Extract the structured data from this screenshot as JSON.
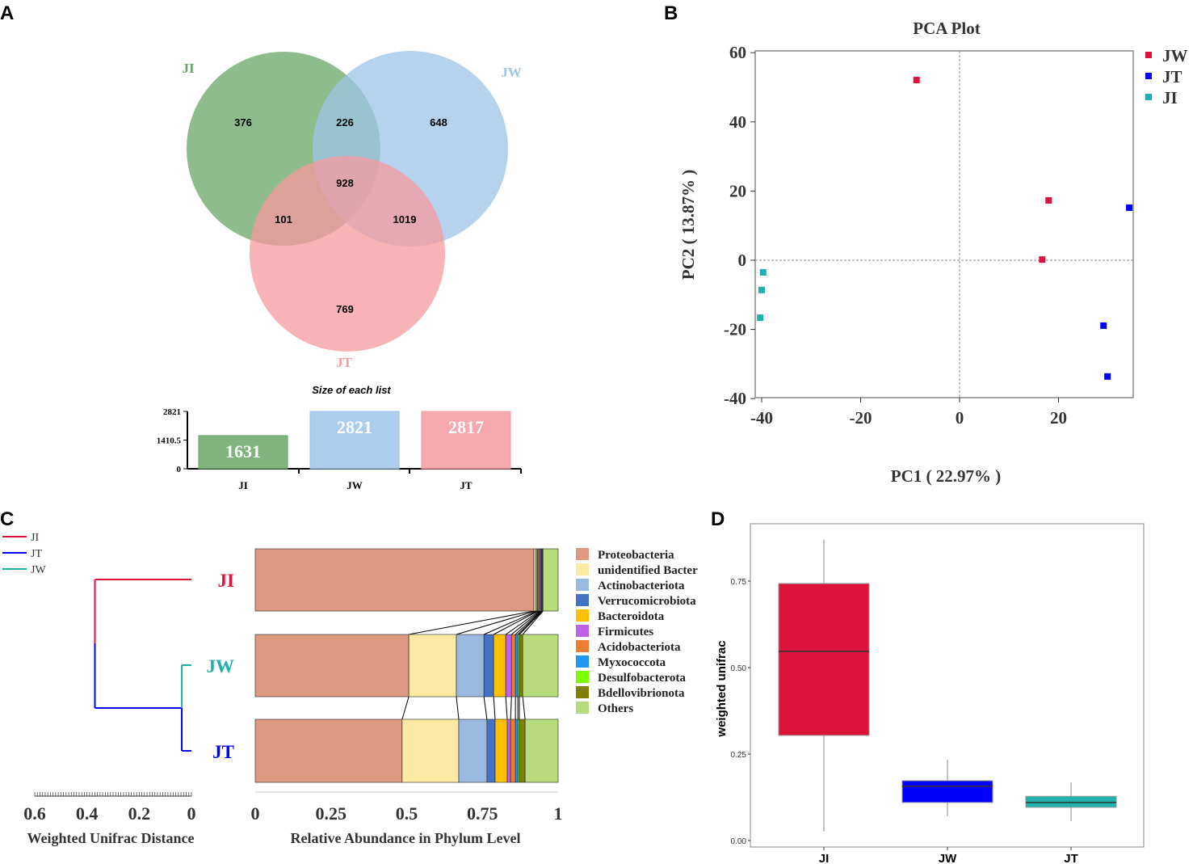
{
  "panels": {
    "a": "A",
    "b": "B",
    "c": "C",
    "d": "D"
  },
  "chart_data": [
    {
      "type": "venn",
      "sets": [
        {
          "name": "JI",
          "color": "#6aa667"
        },
        {
          "name": "JW",
          "color": "#9ec4e8"
        },
        {
          "name": "JT",
          "color": "#f59a9f"
        }
      ],
      "regions": {
        "JI_only": 376,
        "JI_JW": 226,
        "JW_only": 648,
        "all": 928,
        "JI_JT": 101,
        "JW_JT": 1019,
        "JT_only": 769
      },
      "sizes_title": "Size of each list",
      "sizes": {
        "categories": [
          "JI",
          "JW",
          "JT"
        ],
        "values": [
          1631,
          2821,
          2817
        ],
        "ticks": [
          "0",
          "1410.5",
          "2821"
        ],
        "ylim": [
          0,
          2821
        ]
      }
    },
    {
      "type": "scatter",
      "title": "PCA Plot",
      "xlabel": "PC1 ( 22.97% )",
      "ylabel": "PC2 ( 13.87% )",
      "xlim": [
        -41.3,
        35.1
      ],
      "ylim": [
        -40.3,
        60.5
      ],
      "xticks": [
        -40,
        -20,
        0,
        20
      ],
      "yticks": [
        60,
        40,
        20,
        0,
        -20,
        -40
      ],
      "legend": "top-right",
      "series": [
        {
          "name": "JW",
          "color": "#dc143c",
          "points": [
            [
              -8.7,
              52.1
            ],
            [
              18.0,
              17.3
            ],
            [
              16.7,
              0.2
            ]
          ]
        },
        {
          "name": "JT",
          "color": "#0000ff",
          "points": [
            [
              34.3,
              15.2
            ],
            [
              29.1,
              -18.9
            ],
            [
              29.9,
              -33.6
            ]
          ]
        },
        {
          "name": "JI",
          "color": "#20b2aa",
          "points": [
            [
              -39.7,
              -3.5
            ],
            [
              -40.0,
              -8.6
            ],
            [
              -40.3,
              -16.6
            ]
          ]
        }
      ]
    },
    {
      "type": "dendrogram",
      "xlabel": "Weighted Unifrac Distance",
      "xticks": [
        "0.6",
        "0.4",
        "0.2",
        "0"
      ],
      "legend": [
        {
          "name": "JI",
          "color": "#dc143c"
        },
        {
          "name": "JT",
          "color": "#0000ff"
        },
        {
          "name": "JW",
          "color": "#20b2aa"
        }
      ],
      "leaves": [
        {
          "name": "JI",
          "color": "#dc143c"
        },
        {
          "name": "JW",
          "color": "#20b2aa"
        },
        {
          "name": "JT",
          "color": "#0000ff"
        }
      ],
      "merges": [
        {
          "children": [
            "JW",
            "JT"
          ],
          "height": 0.037
        },
        {
          "children": [
            "JI",
            "JW+JT"
          ],
          "height": 0.37
        }
      ]
    },
    {
      "type": "bar",
      "stacked": true,
      "orientation": "horizontal",
      "xlabel": "Relative Abundance in Phylum Level",
      "xticks": [
        "0",
        "0.25",
        "0.5",
        "0.75",
        "1"
      ],
      "categories": [
        "JI",
        "JW",
        "JT"
      ],
      "series": [
        {
          "name": "Proteobacteria",
          "color": "#dd9a80",
          "values": [
            0.92,
            0.507,
            0.485
          ]
        },
        {
          "name": "unidentified Bacter",
          "color": "#fbe9a4",
          "values": [
            0.006,
            0.157,
            0.187
          ]
        },
        {
          "name": "Actinobacteriota",
          "color": "#9ab9e0",
          "values": [
            0.005,
            0.091,
            0.093
          ]
        },
        {
          "name": "Verrucomicrobiota",
          "color": "#4472c4",
          "values": [
            0.003,
            0.032,
            0.027
          ]
        },
        {
          "name": "Bacteroidota",
          "color": "#ffc000",
          "values": [
            0.004,
            0.04,
            0.04
          ]
        },
        {
          "name": "Firmicutes",
          "color": "#c061e8",
          "values": [
            0.003,
            0.019,
            0.011
          ]
        },
        {
          "name": "Acidobacteriota",
          "color": "#ed7d31",
          "values": [
            0.003,
            0.013,
            0.016
          ]
        },
        {
          "name": "Myxococcota",
          "color": "#2196f3",
          "values": [
            0.002,
            0.008,
            0.008
          ]
        },
        {
          "name": "Desulfobacterota",
          "color": "#7cfc00",
          "values": [
            0.002,
            0.005,
            0.005
          ]
        },
        {
          "name": "Bdellovibrionota",
          "color": "#7f7f00",
          "values": [
            0.002,
            0.011,
            0.019
          ]
        },
        {
          "name": "Others",
          "color": "#b8dc7c",
          "values": [
            0.05,
            0.117,
            0.109
          ]
        }
      ]
    },
    {
      "type": "box",
      "ylabel": "weighted unifrac",
      "yticks": [
        "0.00",
        "0.25",
        "0.50",
        "0.75"
      ],
      "ylim": [
        -0.01,
        0.93
      ],
      "categories": [
        "JI",
        "JW",
        "JT"
      ],
      "boxes": [
        {
          "name": "JI",
          "color": "#dc143c",
          "min": 0.026,
          "q1": 0.304,
          "median": 0.547,
          "q3": 0.743,
          "max": 0.871
        },
        {
          "name": "JW",
          "color": "#0000ff",
          "min": 0.07,
          "q1": 0.11,
          "median": 0.157,
          "q3": 0.173,
          "max": 0.234
        },
        {
          "name": "JT",
          "color": "#20b2aa",
          "min": 0.056,
          "q1": 0.096,
          "median": 0.11,
          "q3": 0.128,
          "max": 0.168
        }
      ]
    }
  ]
}
